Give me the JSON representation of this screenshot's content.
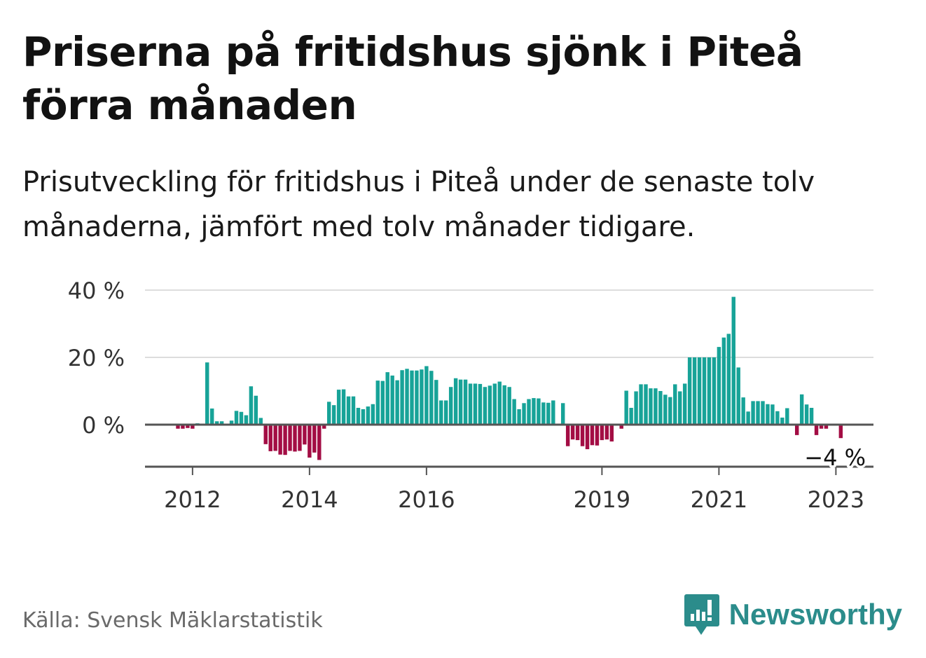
{
  "title": "Priserna på fritidshus sjönk i Piteå förra månaden",
  "subtitle": "Prisutveckling för fritidshus i Piteå under de senaste tolv månaderna, jämfört med tolv månader tidigare.",
  "source": "Källa: Svensk Mäklarstatistik",
  "brand": "Newsworthy",
  "colors": {
    "positive": "#17a398",
    "negative": "#a30d44",
    "grid": "#dddddd",
    "zero_line": "#555555",
    "axis_text": "#333333",
    "brand": "#2b8c8b"
  },
  "chart_data": {
    "type": "bar",
    "ylabel": "",
    "xlabel": "",
    "ylim": [
      -12,
      40
    ],
    "y_ticks": [
      {
        "value": 40,
        "label": "40 %"
      },
      {
        "value": 20,
        "label": "20 %"
      },
      {
        "value": 0,
        "label": "0 %"
      }
    ],
    "x_ticks": [
      {
        "value": 2012,
        "label": "2012"
      },
      {
        "value": 2014,
        "label": "2014"
      },
      {
        "value": 2016,
        "label": "2016"
      },
      {
        "value": 2019,
        "label": "2019"
      },
      {
        "value": 2021,
        "label": "2021"
      },
      {
        "value": 2023,
        "label": "2023"
      }
    ],
    "start_year": 2011.75,
    "end_year": 2023.75,
    "end_label": "−4 %",
    "series": [
      {
        "values": [
          -1.2,
          -1.2,
          -1,
          -1.2,
          0.4,
          0.2,
          18.5,
          4.8,
          1,
          1,
          0.2,
          1.2,
          4.1,
          3.8,
          2.8,
          11.4,
          8.6,
          2,
          -5.8,
          -7.9,
          -7.8,
          -8.9,
          -9,
          -7.8,
          -8,
          -7.8,
          -5.9,
          -9.8,
          -8.3,
          -10.5,
          -1.2,
          6.8,
          5.8,
          10.4,
          10.5,
          8.4,
          8.4,
          5,
          4.6,
          5.4,
          6.1,
          13.1,
          13,
          15.6,
          14.6,
          13.2,
          16.2,
          16.6,
          16.1,
          16.1,
          16.4,
          17.4,
          16,
          13.3,
          7.2,
          7.2,
          11.2,
          13.8,
          13.4,
          13.4,
          12.2,
          12.2,
          12.1,
          11.2,
          11.6,
          12.2,
          12.8,
          11.7,
          11.2,
          7.6,
          4.6,
          6.4,
          7.6,
          7.9,
          7.8,
          6.6,
          6.5,
          7.2,
          null,
          6.4,
          -6.4,
          -4.4,
          -4.6,
          -6.4,
          -7.3,
          -6.1,
          -6.2,
          -4.6,
          -4.4,
          -5,
          null,
          -1.2,
          10.1,
          5,
          9.9,
          12,
          12,
          10.8,
          10.8,
          10,
          8.9,
          8.2,
          12,
          9.9,
          12.2,
          20,
          20,
          20,
          20,
          20,
          20,
          23.1,
          25.9,
          27,
          38,
          17,
          8.1,
          3.9,
          7,
          7,
          7,
          6.1,
          6,
          4,
          2.1,
          4.9,
          null,
          -3.1,
          9,
          6,
          5,
          -3.1,
          -1.2,
          -1.2,
          null,
          null,
          -4
        ]
      }
    ]
  }
}
